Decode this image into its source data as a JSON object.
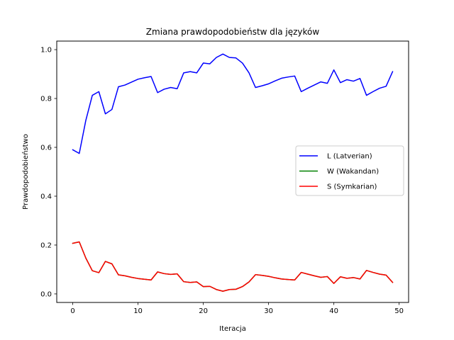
{
  "chart_data": {
    "type": "line",
    "title": "Zmiana prawdopodobieństw dla języków",
    "xlabel": "Iteracja",
    "ylabel": "Prawdopodobieństwo",
    "xlim": [
      -2.45,
      51.45
    ],
    "ylim": [
      -0.035,
      1.035
    ],
    "xticks": [
      0,
      10,
      20,
      30,
      40,
      50
    ],
    "xtick_labels": [
      "0",
      "10",
      "20",
      "30",
      "40",
      "50"
    ],
    "yticks": [
      0.0,
      0.2,
      0.4,
      0.6,
      0.8,
      1.0
    ],
    "ytick_labels": [
      "0.0",
      "0.2",
      "0.4",
      "0.6",
      "0.8",
      "1.0"
    ],
    "legend_position": "center-right",
    "x": [
      0,
      1,
      2,
      3,
      4,
      5,
      6,
      7,
      8,
      9,
      10,
      11,
      12,
      13,
      14,
      15,
      16,
      17,
      18,
      19,
      20,
      21,
      22,
      23,
      24,
      25,
      26,
      27,
      28,
      29,
      30,
      31,
      32,
      33,
      34,
      35,
      36,
      37,
      38,
      39,
      40,
      41,
      42,
      43,
      44,
      45,
      46,
      47,
      48,
      49
    ],
    "series": [
      {
        "name": "L (Latverian)",
        "color": "#0000ff",
        "values": [
          0.59,
          0.575,
          0.71,
          0.813,
          0.828,
          0.737,
          0.755,
          0.848,
          0.855,
          0.867,
          0.879,
          0.885,
          0.89,
          0.824,
          0.838,
          0.845,
          0.84,
          0.905,
          0.91,
          0.905,
          0.945,
          0.942,
          0.968,
          0.982,
          0.968,
          0.966,
          0.945,
          0.905,
          0.845,
          0.852,
          0.86,
          0.872,
          0.883,
          0.888,
          0.892,
          0.828,
          0.842,
          0.855,
          0.868,
          0.862,
          0.917,
          0.865,
          0.877,
          0.871,
          0.882,
          0.813,
          0.828,
          0.842,
          0.85,
          0.91
        ]
      },
      {
        "name": "W (Wakandan)",
        "color": "#008000",
        "values": [
          0.207,
          0.213,
          0.147,
          0.095,
          0.087,
          0.133,
          0.123,
          0.078,
          0.074,
          0.068,
          0.063,
          0.06,
          0.057,
          0.09,
          0.083,
          0.08,
          0.082,
          0.05,
          0.047,
          0.049,
          0.03,
          0.031,
          0.018,
          0.011,
          0.018,
          0.019,
          0.03,
          0.049,
          0.079,
          0.076,
          0.072,
          0.066,
          0.061,
          0.059,
          0.057,
          0.088,
          0.081,
          0.074,
          0.068,
          0.071,
          0.043,
          0.07,
          0.064,
          0.067,
          0.061,
          0.096,
          0.088,
          0.081,
          0.077,
          0.047
        ]
      },
      {
        "name": "S (Symkarian)",
        "color": "#ff0000",
        "values": [
          0.207,
          0.213,
          0.147,
          0.095,
          0.087,
          0.133,
          0.123,
          0.078,
          0.074,
          0.068,
          0.063,
          0.06,
          0.057,
          0.09,
          0.083,
          0.08,
          0.082,
          0.05,
          0.047,
          0.049,
          0.03,
          0.031,
          0.018,
          0.011,
          0.018,
          0.019,
          0.03,
          0.049,
          0.079,
          0.076,
          0.072,
          0.066,
          0.061,
          0.059,
          0.057,
          0.088,
          0.081,
          0.074,
          0.068,
          0.071,
          0.043,
          0.07,
          0.064,
          0.067,
          0.061,
          0.096,
          0.088,
          0.081,
          0.077,
          0.047
        ]
      }
    ]
  }
}
